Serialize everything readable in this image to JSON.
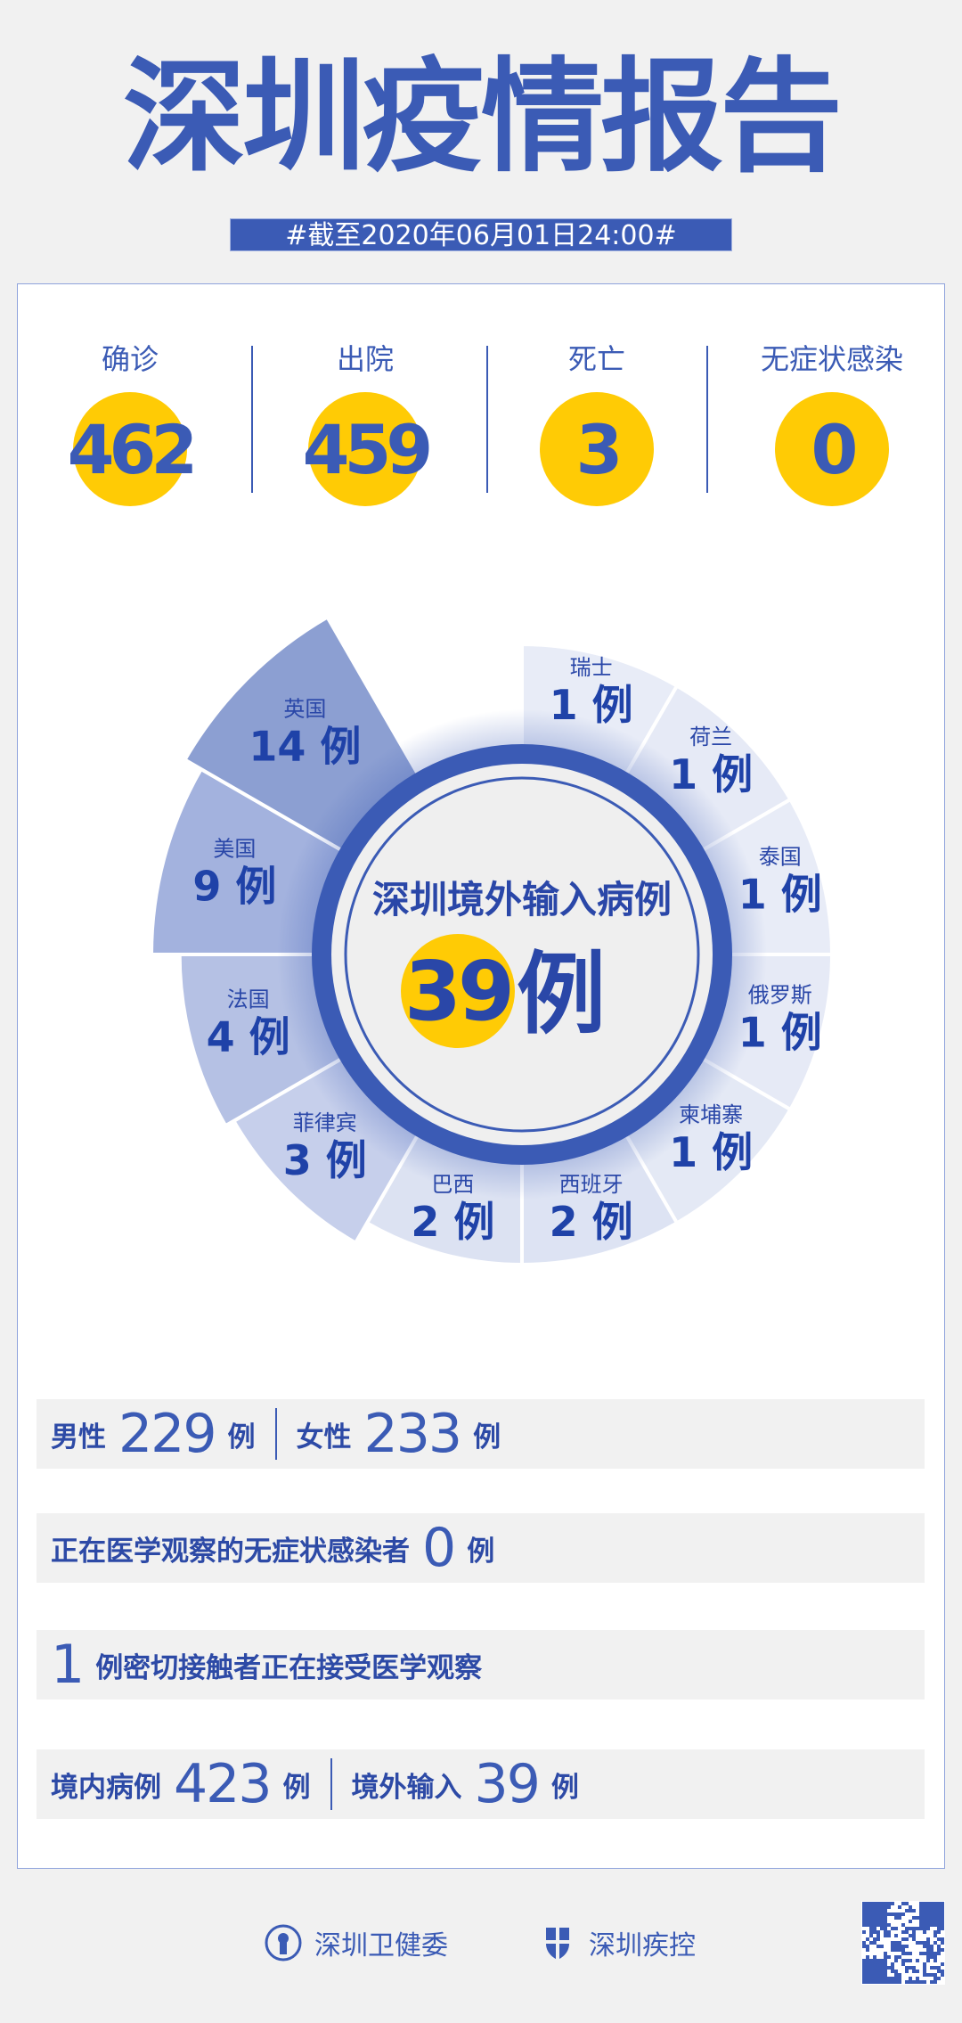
{
  "header": {
    "title": "深圳疫情报告",
    "date": "#截至2020年06月01日24:00#"
  },
  "stats": [
    {
      "label": "确诊",
      "value": "462"
    },
    {
      "label": "出院",
      "value": "459"
    },
    {
      "label": "死亡",
      "value": "3"
    },
    {
      "label": "无症状感染",
      "value": "0"
    }
  ],
  "center": {
    "title": "深圳境外输入病例",
    "value": "39",
    "unit": "例"
  },
  "chart_data": {
    "type": "pie",
    "unit": "例",
    "categories": [
      "瑞士",
      "荷兰",
      "泰国",
      "俄罗斯",
      "柬埔寨",
      "西班牙",
      "巴西",
      "菲律宾",
      "法国",
      "美国",
      "英国"
    ],
    "values": [
      1,
      1,
      1,
      1,
      1,
      2,
      2,
      3,
      4,
      9,
      14
    ],
    "colors": [
      "#e8ecf7",
      "#e6eaf6",
      "#e8ecf7",
      "#e6eaf6",
      "#e4e9f5",
      "#dde3f3",
      "#dce2f2",
      "#c6cfeb",
      "#b5c1e4",
      "#a3b2de",
      "#8c9fd2"
    ]
  },
  "rows": {
    "male_label": "男性",
    "male": "229",
    "unit": "例",
    "female_label": "女性",
    "female": "233",
    "asym_label": "正在医学观察的无症状感染者",
    "asym": "0",
    "contact": "1",
    "contact_label": "例密切接触者正在接受医学观察",
    "local_label": "境内病例",
    "local": "423",
    "imported_label": "境外输入",
    "imported": "39"
  },
  "footer": {
    "org1": "深圳卫健委",
    "org2": "深圳疾控"
  },
  "colors": {
    "blue": "#3b5bb5",
    "yellow": "#ffcb05"
  }
}
